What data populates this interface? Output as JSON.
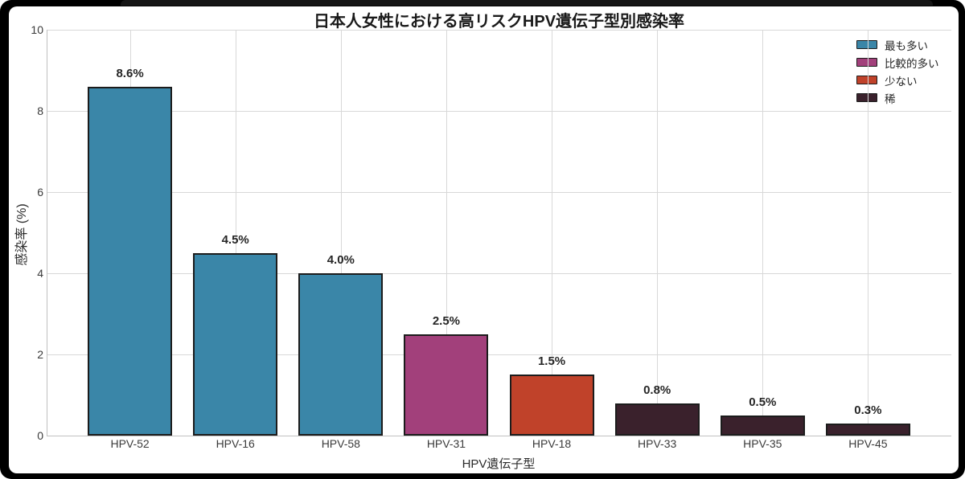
{
  "chart_data": {
    "type": "bar",
    "title": "日本人女性における高リスクHPV遺伝子型別感染率",
    "xlabel": "HPV遺伝子型",
    "ylabel": "感染率 (%)",
    "categories": [
      "HPV-52",
      "HPV-16",
      "HPV-58",
      "HPV-31",
      "HPV-18",
      "HPV-33",
      "HPV-35",
      "HPV-45"
    ],
    "values": [
      8.6,
      4.5,
      4.0,
      2.5,
      1.5,
      0.8,
      0.5,
      0.3
    ],
    "value_labels": [
      "8.6%",
      "4.5%",
      "4.0%",
      "2.5%",
      "1.5%",
      "0.8%",
      "0.5%",
      "0.3%"
    ],
    "bar_group_index": [
      0,
      0,
      0,
      1,
      2,
      3,
      3,
      3
    ],
    "ylim": [
      0,
      10
    ],
    "yticks": [
      0,
      2,
      4,
      6,
      8,
      10
    ],
    "grid": true,
    "legend_position": "upper right",
    "legend": [
      {
        "label": "最も多い",
        "color": "#3A86A8"
      },
      {
        "label": "比較的多い",
        "color": "#A2407B"
      },
      {
        "label": "少ない",
        "color": "#C0422A"
      },
      {
        "label": "稀",
        "color": "#3A212C"
      }
    ]
  },
  "colors": {
    "frame": "#000000",
    "plot_background": "#ffffff",
    "gridline": "#d8d8d8",
    "bar_edge": "#1c1c1c",
    "text": "#262626"
  }
}
